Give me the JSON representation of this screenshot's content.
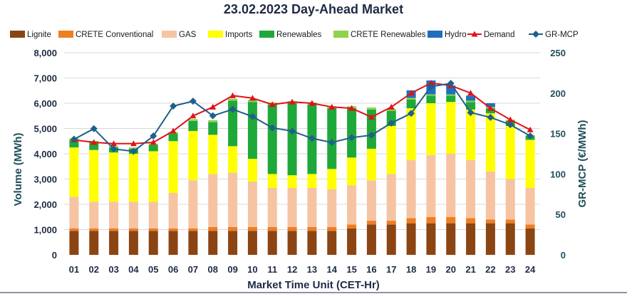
{
  "chart_data": {
    "type": "bar",
    "title": "23.02.2023  Day-Ahead Market",
    "xlabel": "Market Time Unit (CET-Hr)",
    "ylabel": "Volume (MWh)",
    "y2label": "GR-MCP (€/MWh)",
    "ylim": [
      0,
      8000
    ],
    "y2lim": [
      0,
      250
    ],
    "yticks": [
      "0",
      "1,000",
      "2,000",
      "3,000",
      "4,000",
      "5,000",
      "6,000",
      "7,000",
      "8,000"
    ],
    "y2ticks": [
      "0",
      "50",
      "100",
      "150",
      "200",
      "250"
    ],
    "categories": [
      "01",
      "02",
      "03",
      "04",
      "05",
      "06",
      "07",
      "08",
      "09",
      "10",
      "11",
      "12",
      "13",
      "14",
      "15",
      "16",
      "17",
      "18",
      "19",
      "20",
      "21",
      "22",
      "23",
      "24"
    ],
    "legend": [
      "Lignite",
      "CRETE Conventional",
      "GAS",
      "Imports",
      "Renewables",
      "CRETE Renewables",
      "Hydro",
      "Demand",
      "GR-MCP"
    ],
    "colors": {
      "Lignite": "#8b4513",
      "CRETE Conventional": "#ef7d22",
      "GAS": "#f6c4a2",
      "Imports": "#ffff00",
      "Renewables": "#1fa83a",
      "CRETE Renewables": "#8ed44a",
      "Hydro": "#1f6fbf",
      "Demand": "#e0121a",
      "GR-MCP": "#1f5f8b"
    },
    "series": [
      {
        "name": "Lignite",
        "values": [
          950,
          950,
          950,
          950,
          950,
          950,
          950,
          950,
          950,
          950,
          950,
          950,
          950,
          950,
          1050,
          1200,
          1200,
          1250,
          1250,
          1250,
          1250,
          1250,
          1250,
          1050
        ]
      },
      {
        "name": "CRETE Conventional",
        "values": [
          100,
          100,
          100,
          100,
          100,
          100,
          100,
          150,
          150,
          150,
          150,
          150,
          150,
          150,
          150,
          150,
          150,
          200,
          250,
          250,
          200,
          150,
          150,
          150
        ]
      },
      {
        "name": "GAS",
        "values": [
          1250,
          1050,
          1050,
          1050,
          1050,
          1400,
          1900,
          2100,
          2150,
          1800,
          1550,
          1550,
          1550,
          1500,
          1550,
          1600,
          1850,
          2300,
          2450,
          2500,
          2300,
          1900,
          1600,
          1450
        ]
      },
      {
        "name": "Imports",
        "values": [
          1950,
          2050,
          1950,
          1900,
          2000,
          2050,
          1950,
          1550,
          1050,
          900,
          550,
          500,
          550,
          800,
          1100,
          1250,
          1900,
          2050,
          2050,
          2050,
          2000,
          2300,
          2100,
          1900
        ]
      },
      {
        "name": "Renewables",
        "values": [
          300,
          300,
          200,
          200,
          250,
          300,
          400,
          500,
          1800,
          2250,
          2750,
          2850,
          2750,
          2400,
          1950,
          1550,
          600,
          350,
          300,
          250,
          300,
          200,
          200,
          150
        ]
      },
      {
        "name": "CRETE Renewables",
        "values": [
          60,
          60,
          50,
          50,
          50,
          60,
          70,
          80,
          80,
          80,
          80,
          80,
          80,
          80,
          80,
          80,
          80,
          60,
          50,
          50,
          50,
          50,
          50,
          40
        ]
      },
      {
        "name": "Hydro",
        "values": [
          0,
          0,
          0,
          0,
          0,
          0,
          0,
          0,
          0,
          0,
          0,
          0,
          0,
          0,
          0,
          0,
          0,
          300,
          550,
          350,
          200,
          150,
          0,
          0
        ]
      },
      {
        "name": "Demand",
        "type": "line",
        "axis": "left",
        "values": [
          4550,
          4450,
          4400,
          4400,
          4450,
          4900,
          5500,
          5850,
          6300,
          6200,
          5950,
          6050,
          6000,
          5850,
          5800,
          5450,
          5850,
          6400,
          6800,
          6700,
          6400,
          5800,
          5350,
          4950
        ]
      },
      {
        "name": "GR-MCP",
        "type": "line",
        "axis": "right",
        "values": [
          143,
          156,
          131,
          128,
          147,
          184,
          190,
          172,
          180,
          171,
          157,
          153,
          144,
          139,
          145,
          148,
          163,
          175,
          208,
          212,
          176,
          170,
          161,
          147
        ]
      }
    ]
  }
}
